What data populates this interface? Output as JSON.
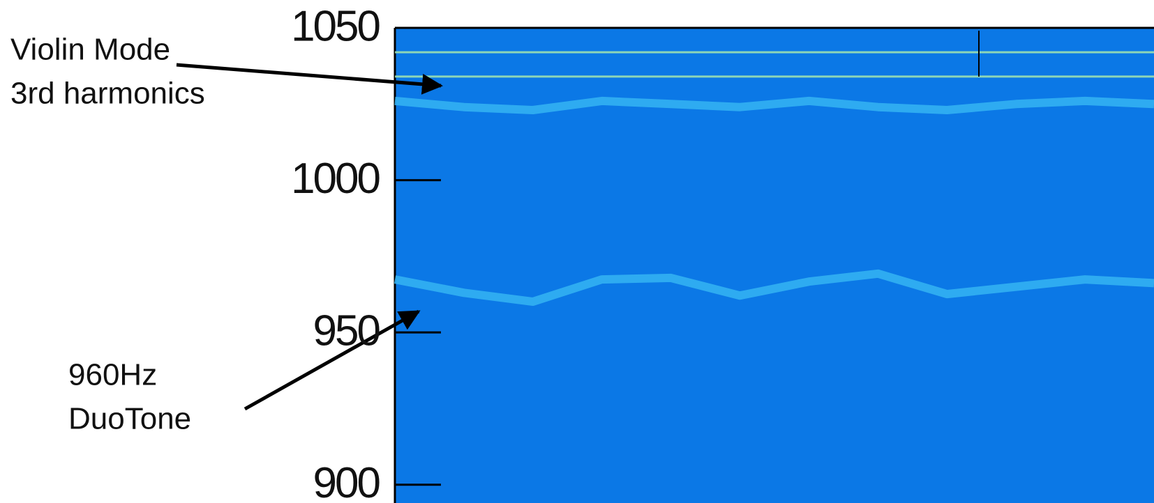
{
  "chart_data": {
    "type": "spectrogram",
    "ylim": [
      894,
      1050
    ],
    "yticks": [
      900,
      950,
      1000,
      1050
    ],
    "background": "#0b78e6",
    "series": [
      {
        "color": "#9be0b0",
        "values": [
          1042,
          1042
        ]
      },
      {
        "color": "#9be0b0",
        "values": [
          1034,
          1034
        ]
      },
      {
        "color": "#35b4f2",
        "values": [
          1026,
          1024,
          1023,
          1026,
          1025,
          1024,
          1026,
          1024,
          1023,
          1025,
          1026,
          1025
        ]
      },
      {
        "color": "#35b4f2",
        "values": [
          967.4,
          963.0,
          960.1,
          967.4,
          967.9,
          962.1,
          966.7,
          969.3,
          962.6,
          965.0,
          967.4,
          966.2
        ]
      }
    ],
    "annotations": [
      {
        "lines": [
          "Violin Mode",
          "3rd harmonics"
        ]
      },
      {
        "lines": [
          "960Hz",
          "DuoTone"
        ]
      }
    ]
  }
}
